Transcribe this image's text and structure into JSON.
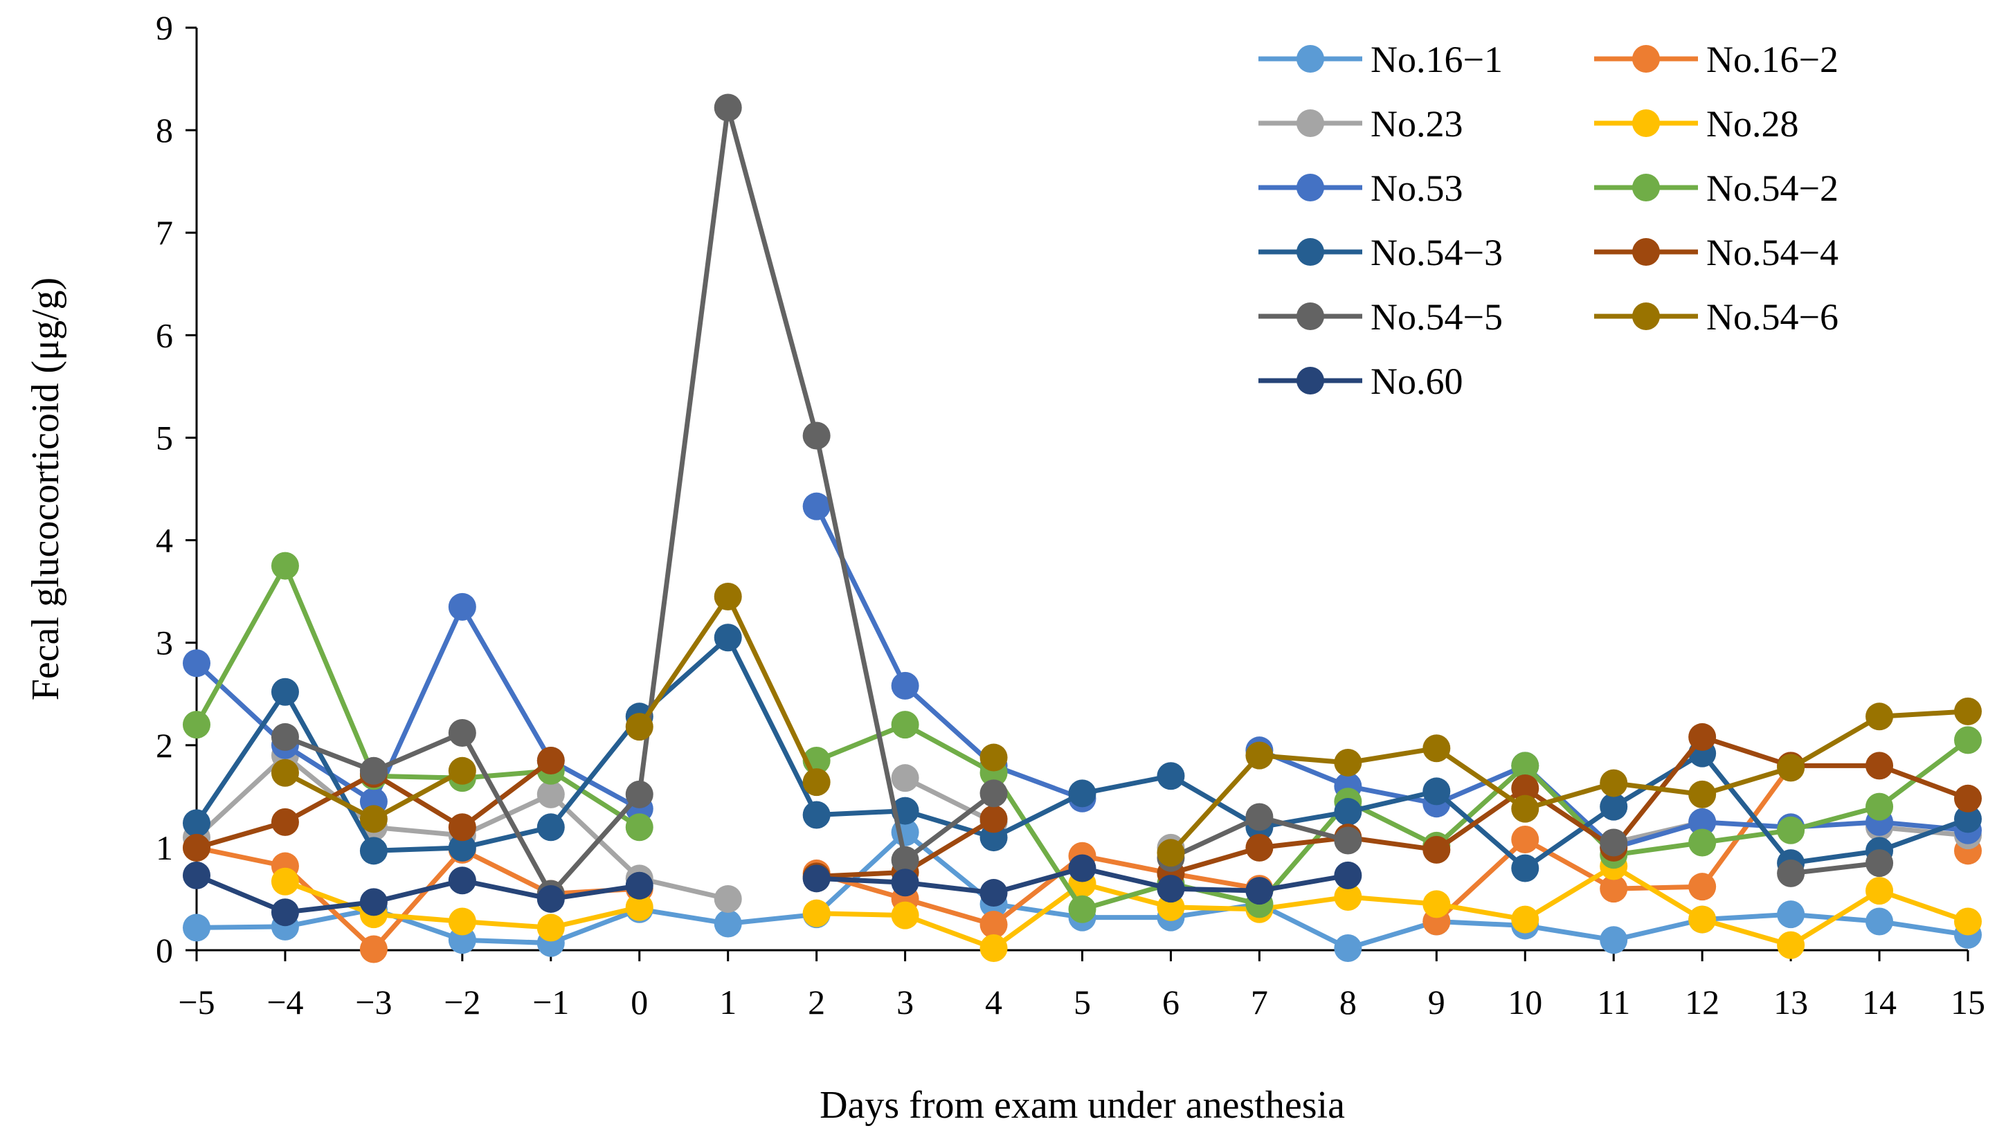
{
  "chart_data": {
    "type": "line",
    "title": "",
    "xlabel": "Days from exam under anesthesia",
    "ylabel": "Fecal  glucocorticoid (μg/g)",
    "xlim": [
      -5,
      15
    ],
    "ylim": [
      0,
      9
    ],
    "x_tick_labels": [
      "−5",
      "−4",
      "−3",
      "−2",
      "−1",
      "0",
      "1",
      "2",
      "3",
      "4",
      "5",
      "6",
      "7",
      "8",
      "9",
      "10",
      "11",
      "12",
      "13",
      "14",
      "15"
    ],
    "y_tick_labels": [
      "0",
      "1",
      "2",
      "3",
      "4",
      "5",
      "6",
      "7",
      "8",
      "9"
    ],
    "grid": false,
    "legend_position": "top-right",
    "x": [
      -5,
      -4,
      -3,
      -2,
      -1,
      0,
      1,
      2,
      3,
      4,
      5,
      6,
      7,
      8,
      9,
      10,
      11,
      12,
      13,
      14,
      15
    ],
    "series": [
      {
        "name": "No.16−1",
        "color": "#5B9BD5",
        "values": [
          0.22,
          0.23,
          0.4,
          0.1,
          0.07,
          0.4,
          0.26,
          0.35,
          1.15,
          0.45,
          0.32,
          0.32,
          0.45,
          0.02,
          0.28,
          0.24,
          0.1,
          0.3,
          0.35,
          0.28,
          0.15
        ]
      },
      {
        "name": "No.16−2",
        "color": "#ED7D31",
        "values": [
          1.0,
          0.82,
          0.01,
          0.98,
          0.55,
          0.6,
          null,
          0.75,
          0.5,
          0.25,
          0.92,
          0.75,
          0.6,
          null,
          0.28,
          1.08,
          0.6,
          0.62,
          1.8,
          null,
          0.97
        ]
      },
      {
        "name": "No.23",
        "color": "#A5A5A5",
        "values": [
          1.1,
          1.9,
          1.2,
          1.12,
          1.52,
          0.7,
          0.5,
          null,
          1.68,
          1.25,
          null,
          1.0,
          null,
          null,
          null,
          null,
          1.05,
          1.25,
          null,
          1.2,
          1.12
        ]
      },
      {
        "name": "No.28",
        "color": "#FFC000",
        "values": [
          null,
          0.67,
          0.35,
          0.28,
          0.22,
          0.42,
          null,
          0.36,
          0.34,
          0.02,
          0.65,
          0.42,
          0.4,
          0.52,
          0.45,
          0.3,
          0.82,
          0.3,
          0.05,
          0.58,
          0.28
        ]
      },
      {
        "name": "No.53",
        "color": "#4472C4",
        "values": [
          2.8,
          2.0,
          1.45,
          3.35,
          1.85,
          1.38,
          null,
          4.33,
          2.58,
          1.8,
          1.48,
          null,
          1.95,
          1.6,
          1.43,
          1.8,
          1.0,
          1.25,
          1.2,
          1.25,
          1.17
        ]
      },
      {
        "name": "No.54−2",
        "color": "#70AD47",
        "values": [
          2.2,
          3.75,
          1.7,
          1.68,
          1.75,
          1.2,
          null,
          1.85,
          2.2,
          1.73,
          0.4,
          0.65,
          0.45,
          1.45,
          1.02,
          1.8,
          0.93,
          1.05,
          1.17,
          1.4,
          2.05
        ]
      },
      {
        "name": "No.54−3",
        "color": "#255E91",
        "values": [
          1.24,
          2.52,
          0.97,
          1.0,
          1.2,
          2.28,
          3.05,
          1.32,
          1.36,
          1.1,
          1.53,
          1.7,
          1.2,
          1.35,
          1.55,
          0.8,
          1.4,
          1.92,
          0.85,
          0.97,
          1.28
        ]
      },
      {
        "name": "No.54−4",
        "color": "#9E480E",
        "values": [
          1.0,
          1.25,
          1.72,
          1.2,
          1.85,
          null,
          null,
          0.72,
          0.76,
          1.28,
          null,
          0.75,
          1.0,
          1.1,
          0.98,
          1.58,
          1.0,
          2.08,
          1.8,
          1.8,
          1.48
        ]
      },
      {
        "name": "No.54−5",
        "color": "#636363",
        "values": [
          null,
          2.08,
          1.75,
          2.12,
          0.55,
          1.52,
          8.22,
          5.02,
          0.88,
          1.53,
          null,
          0.9,
          1.3,
          1.07,
          null,
          null,
          1.05,
          null,
          0.75,
          0.85,
          null
        ]
      },
      {
        "name": "No.54−6",
        "color": "#997300",
        "values": [
          null,
          1.73,
          1.28,
          1.75,
          null,
          2.18,
          3.45,
          1.64,
          null,
          1.88,
          null,
          0.95,
          1.9,
          1.83,
          1.97,
          1.38,
          1.63,
          1.52,
          1.78,
          2.28,
          2.33
        ]
      },
      {
        "name": "No.60",
        "color": "#264478",
        "values": [
          0.73,
          0.37,
          0.47,
          0.68,
          0.5,
          0.63,
          null,
          0.7,
          0.66,
          0.56,
          0.8,
          0.6,
          0.58,
          0.73,
          null,
          null,
          null,
          null,
          null,
          null,
          null
        ]
      }
    ]
  }
}
